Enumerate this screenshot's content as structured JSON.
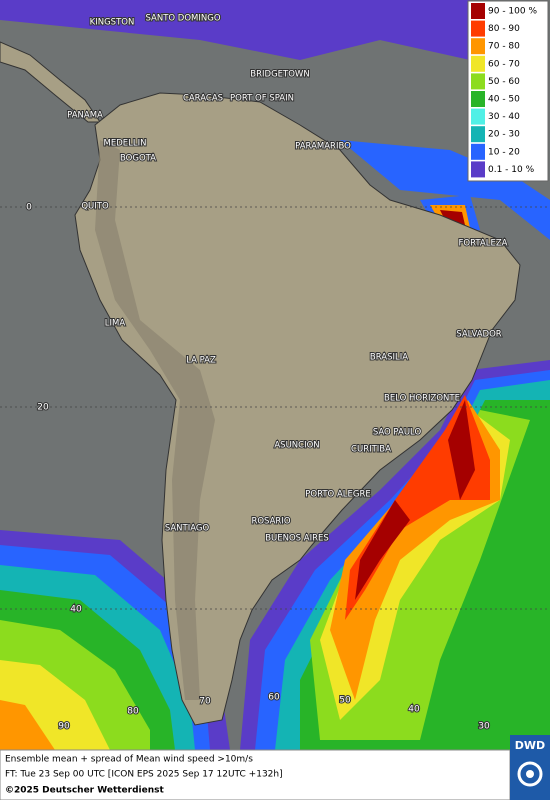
{
  "legend": [
    {
      "label": "90 - 100 %",
      "color": "#a50000"
    },
    {
      "label": "80 - 90",
      "color": "#ff3c00"
    },
    {
      "label": "70 - 80",
      "color": "#ff9600"
    },
    {
      "label": "60 - 70",
      "color": "#f0e628"
    },
    {
      "label": "50 - 60",
      "color": "#8cdc1e"
    },
    {
      "label": "40 - 50",
      "color": "#28b428"
    },
    {
      "label": "30 - 40",
      "color": "#50f0e6"
    },
    {
      "label": "20 - 30",
      "color": "#14b4b4"
    },
    {
      "label": "10 - 20",
      "color": "#2864ff"
    },
    {
      "label": "0.1 - 10 %",
      "color": "#5a3cc8"
    }
  ],
  "cities": [
    "KINGSTON",
    "SANTO DOMINGO",
    "BRIDGETOWN",
    "CARACAS",
    "PORT OF SPAIN",
    "PANAMA",
    "MEDELLIN",
    "BOGOTA",
    "PARAMARIBO",
    "QUITO",
    "FORTALEZA",
    "LIMA",
    "SALVADOR",
    "BRASILIA",
    "LA PAZ",
    "BELO HORIZONTE",
    "SAO PAULO",
    "ASUNCION",
    "CURITIBA",
    "PORTO ALEGRE",
    "ROSARIO",
    "SANTIAGO",
    "BUENOS AIRES"
  ],
  "lat_labels": [
    0,
    20,
    40
  ],
  "lon_labels": [
    90,
    80,
    70,
    60,
    50,
    40,
    30
  ],
  "footer": {
    "line1": "Ensemble mean + spread of Mean wind speed >10m/s",
    "line2": "FT: Tue 23 Sep 00 UTC [ICON EPS 2025 Sep 17 12UTC +132h]",
    "line3": "©2025 Deutscher Wetterdienst"
  },
  "logo": "DWD"
}
